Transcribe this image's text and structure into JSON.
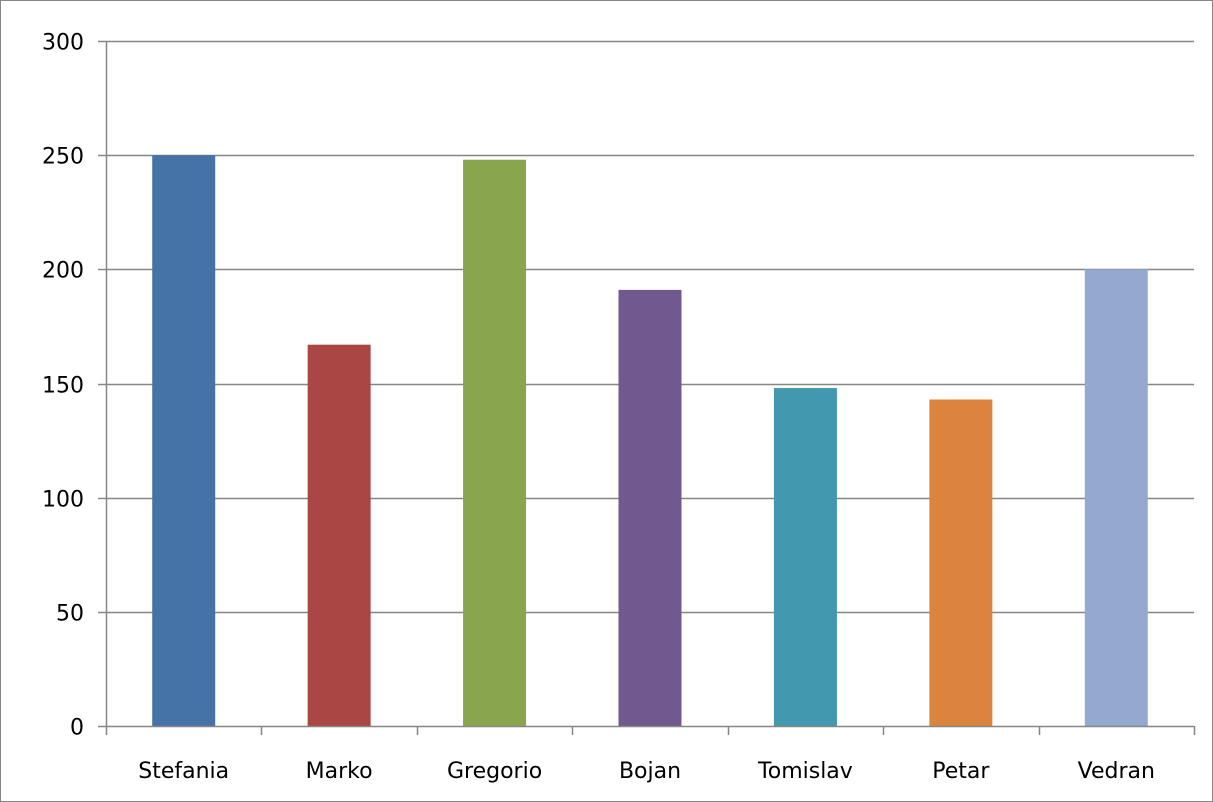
{
  "chart_data": {
    "type": "bar",
    "categories": [
      "Stefania",
      "Marko",
      "Gregorio",
      "Bojan",
      "Tomislav",
      "Petar",
      "Vedran"
    ],
    "values": [
      250,
      167,
      248,
      191,
      148,
      143,
      200
    ],
    "colors": [
      "#4572A7",
      "#AA4643",
      "#89A54E",
      "#71588F",
      "#4198AF",
      "#DB843D",
      "#93A9CF"
    ],
    "title": "",
    "xlabel": "",
    "ylabel": "",
    "ylim": [
      0,
      300
    ],
    "yticks": [
      "0",
      "50",
      "100",
      "150",
      "200",
      "250",
      "300"
    ],
    "ytick_values": [
      0,
      50,
      100,
      150,
      200,
      250,
      300
    ],
    "grid": true,
    "legend": "none",
    "gridline_color": "#868686",
    "axis_color": "#868686"
  }
}
